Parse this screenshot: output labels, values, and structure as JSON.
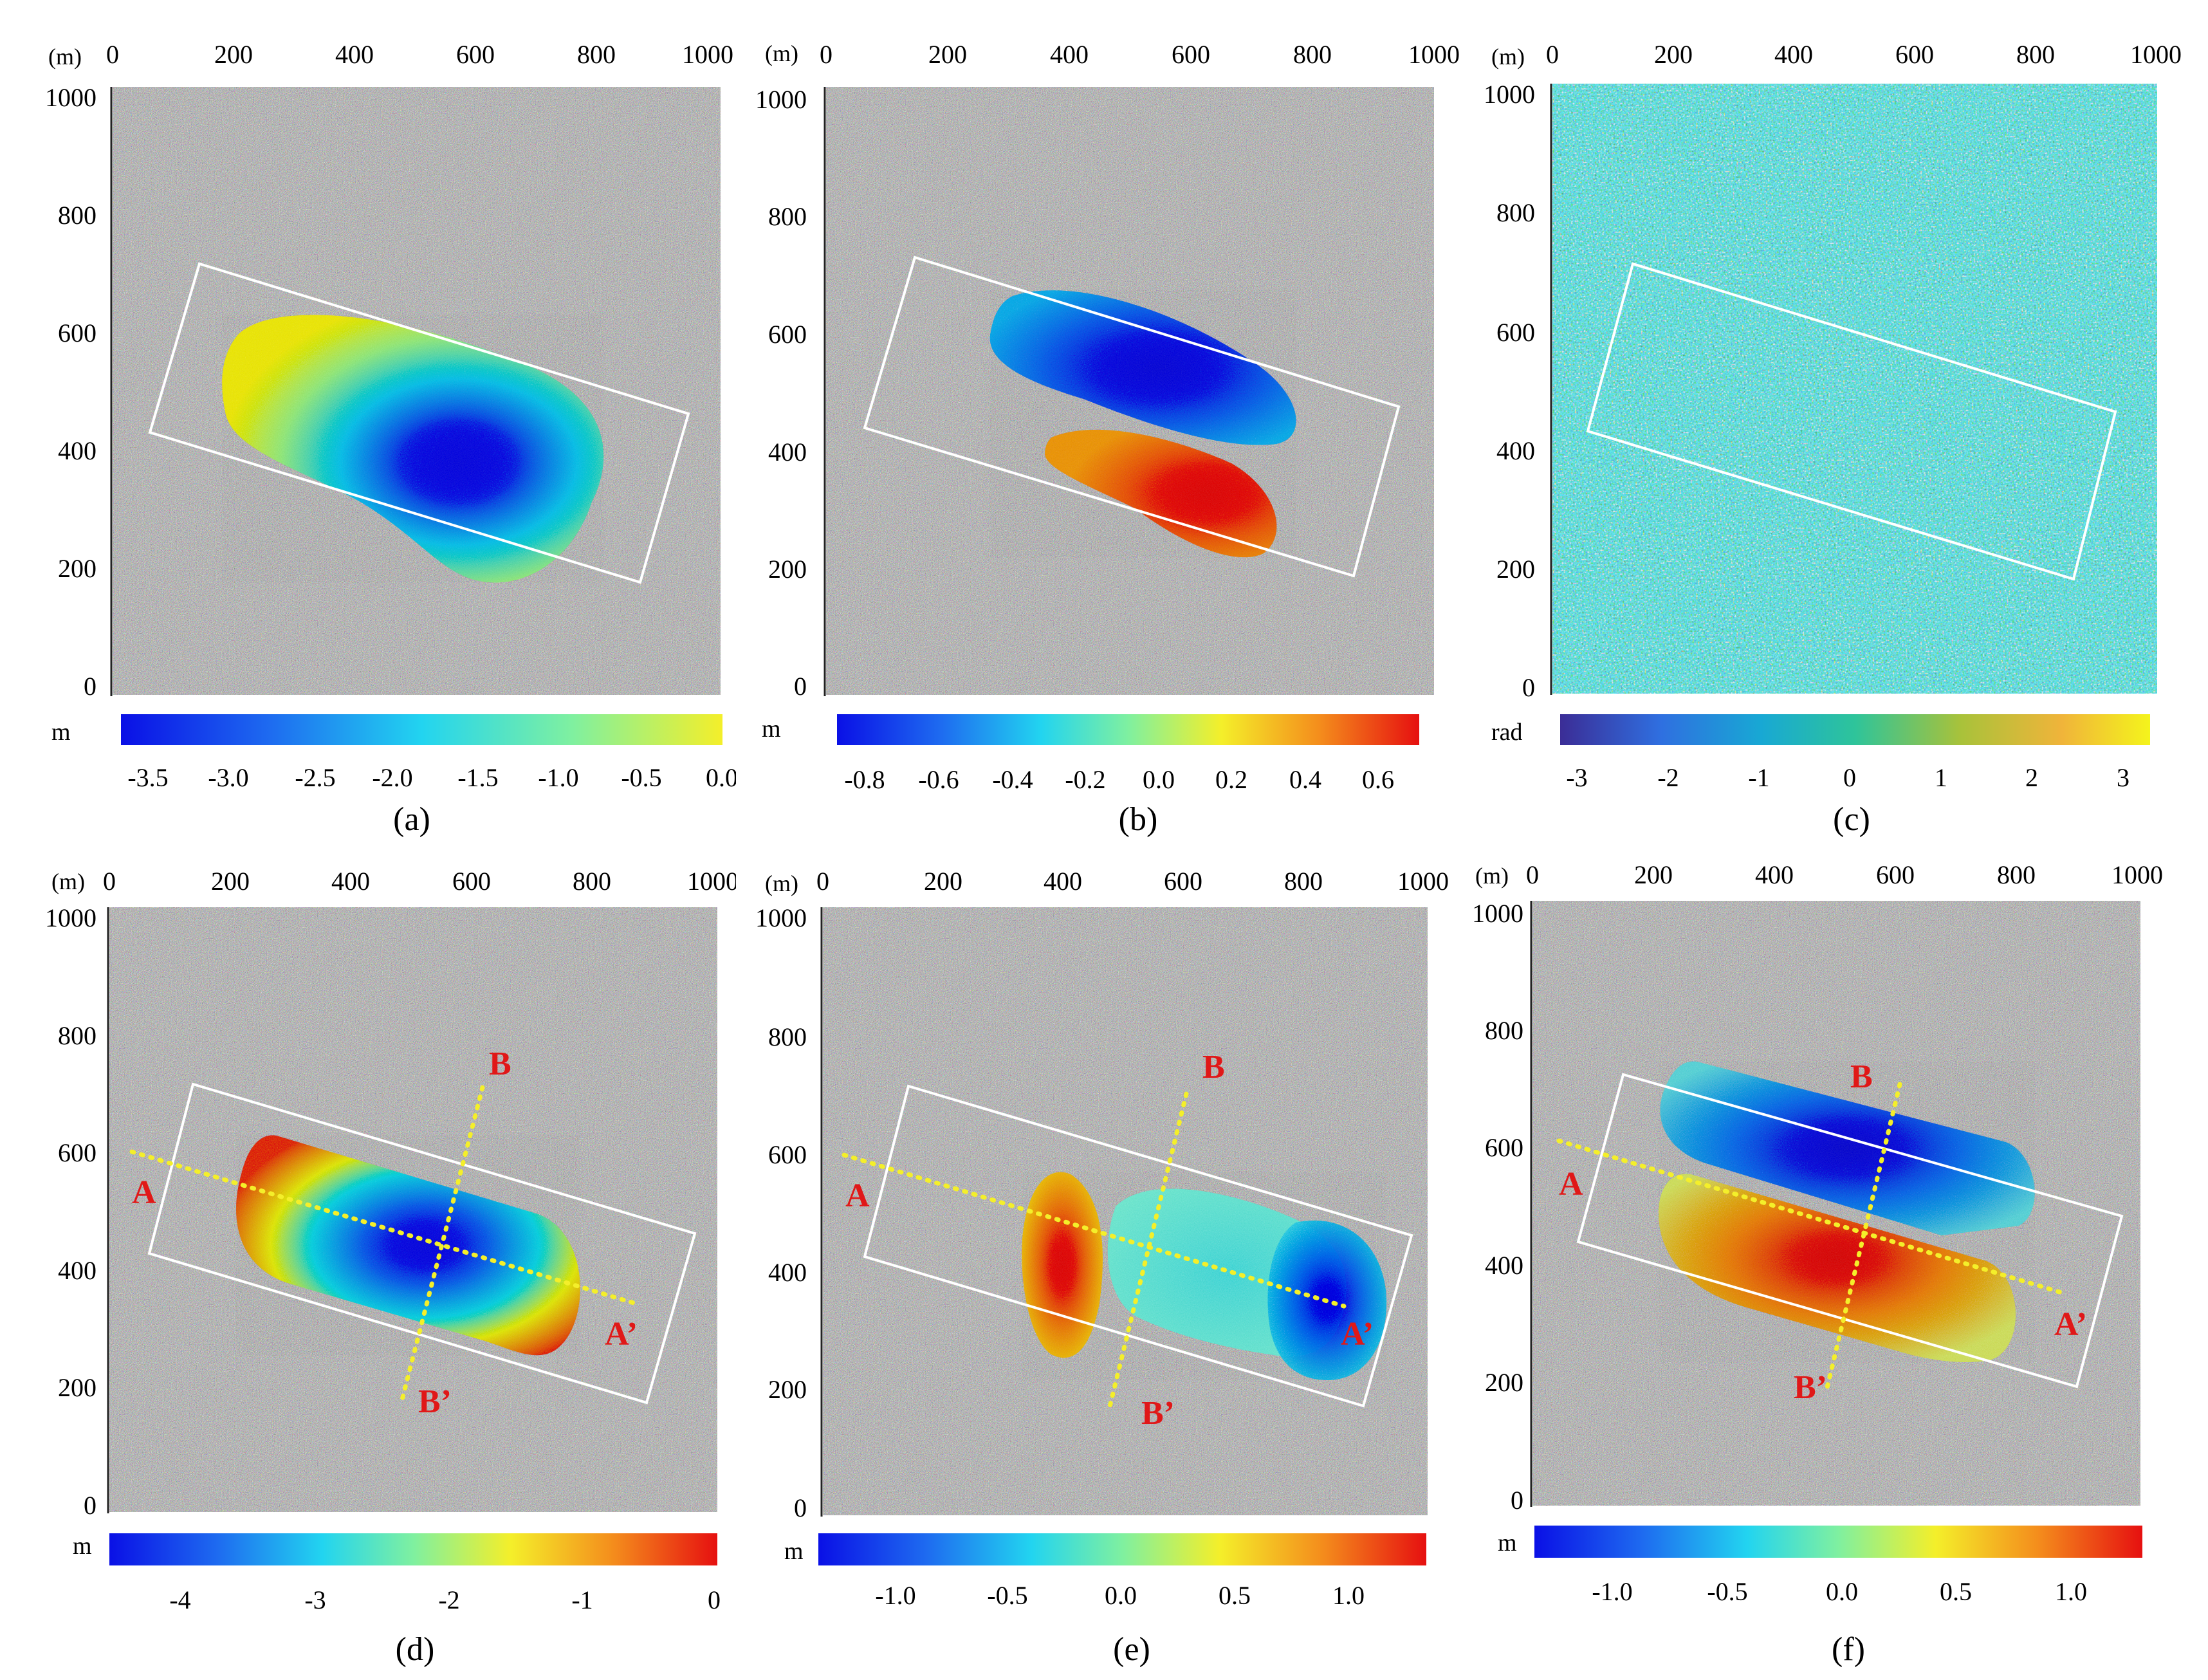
{
  "colors": {
    "jet": [
      "#0a10e6",
      "#1e6cf0",
      "#22d4f0",
      "#7ff0a0",
      "#f4ef2a",
      "#f48c1c",
      "#e61010"
    ],
    "jet_no_red": [
      "#0a10e6",
      "#1e6cf0",
      "#22d4f0",
      "#7ff0a0",
      "#f4ef2a"
    ],
    "parula": [
      "#3b2d96",
      "#2f6fe0",
      "#18a8d4",
      "#2ec49a",
      "#a9c23a",
      "#f0b43a",
      "#f4f41c"
    ],
    "rectangle": "#ffffff",
    "profile_line": "#f4ef2a",
    "profile_label": "#e01818"
  },
  "panels": [
    {
      "id": "a",
      "label": "(a)",
      "unit": "m",
      "axis_unit": "(m)",
      "x_ticks": [
        "0",
        "200",
        "400",
        "600",
        "800",
        "1000"
      ],
      "y_ticks": [
        "1000",
        "800",
        "600",
        "400",
        "200",
        "0"
      ],
      "colorbar": {
        "scale": "jet_no_red",
        "ticks": [
          "-3.5",
          "-3.0",
          "-2.5",
          "-2.0",
          "-1.5",
          "-1.0",
          "-0.5",
          "0.0"
        ]
      }
    },
    {
      "id": "b",
      "label": "(b)",
      "unit": "m",
      "axis_unit": "(m)",
      "x_ticks": [
        "0",
        "200",
        "400",
        "600",
        "800",
        "1000"
      ],
      "y_ticks": [
        "1000",
        "800",
        "600",
        "400",
        "200",
        "0"
      ],
      "colorbar": {
        "scale": "jet",
        "ticks": [
          "-0.8",
          "-0.6",
          "-0.4",
          "-0.2",
          "0.0",
          "0.2",
          "0.4",
          "0.6"
        ]
      }
    },
    {
      "id": "c",
      "label": "(c)",
      "unit": "rad",
      "axis_unit": "(m)",
      "x_ticks": [
        "0",
        "200",
        "400",
        "600",
        "800",
        "1000"
      ],
      "y_ticks": [
        "1000",
        "800",
        "600",
        "400",
        "200",
        "0"
      ],
      "colorbar": {
        "scale": "parula",
        "ticks": [
          "-3",
          "-2",
          "-1",
          "0",
          "1",
          "2",
          "3"
        ]
      }
    },
    {
      "id": "d",
      "label": "(d)",
      "unit": "m",
      "axis_unit": "(m)",
      "x_ticks": [
        "0",
        "200",
        "400",
        "600",
        "800",
        "1000"
      ],
      "y_ticks": [
        "1000",
        "800",
        "600",
        "400",
        "200",
        "0"
      ],
      "colorbar": {
        "scale": "jet",
        "ticks": [
          "-4",
          "-3",
          "-2",
          "-1",
          "0"
        ]
      },
      "profiles": [
        "A",
        "A’",
        "B",
        "B’"
      ]
    },
    {
      "id": "e",
      "label": "(e)",
      "unit": "m",
      "axis_unit": "(m)",
      "x_ticks": [
        "0",
        "200",
        "400",
        "600",
        "800",
        "1000"
      ],
      "y_ticks": [
        "1000",
        "800",
        "600",
        "400",
        "200",
        "0"
      ],
      "colorbar": {
        "scale": "jet",
        "ticks": [
          "-1.0",
          "-0.5",
          "0.0",
          "0.5",
          "1.0"
        ]
      },
      "profiles": [
        "A",
        "A’",
        "B",
        "B’"
      ]
    },
    {
      "id": "f",
      "label": "(f)",
      "unit": "m",
      "axis_unit": "(m)",
      "x_ticks": [
        "0",
        "200",
        "400",
        "600",
        "800",
        "1000"
      ],
      "y_ticks": [
        "1000",
        "800",
        "600",
        "400",
        "200",
        "0"
      ],
      "colorbar": {
        "scale": "jet",
        "ticks": [
          "-1.0",
          "-0.5",
          "0.0",
          "0.5",
          "1.0"
        ]
      },
      "profiles": [
        "A",
        "A’",
        "B",
        "B’"
      ]
    }
  ]
}
